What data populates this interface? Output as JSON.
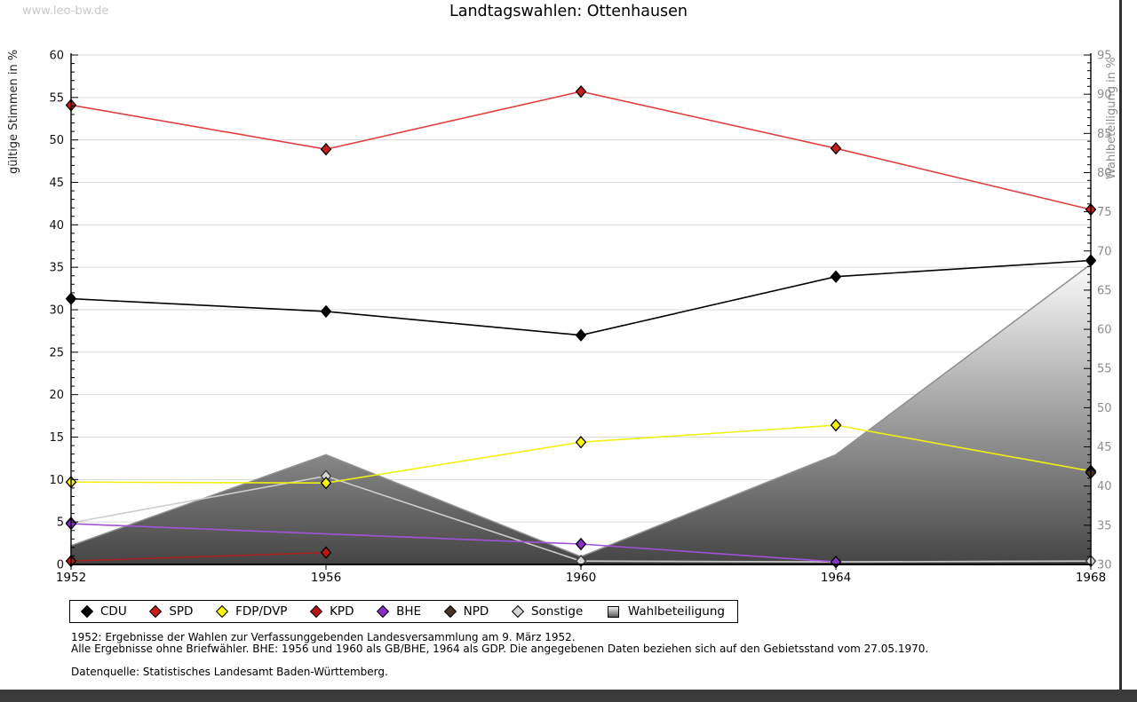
{
  "page": {
    "watermark": "www.leo-bw.de",
    "title": "Landtagswahlen: Ottenhausen",
    "footnotes": [
      "1952: Ergebnisse der Wahlen zur Verfassunggebenden Landesversammlung am 9. März 1952.",
      "Alle Ergebnisse ohne Briefwähler. BHE: 1956 und 1960 als GB/BHE, 1964 als GDP. Die angegebenen Daten beziehen sich auf den Gebietsstand vom 27.05.1970.",
      "Datenquelle: Statistisches Landesamt Baden-Württemberg."
    ]
  },
  "chart_data": {
    "type": "line",
    "title": "Landtagswahlen: Ottenhausen",
    "x": [
      1952,
      1956,
      1960,
      1964,
      1968
    ],
    "y_left": {
      "label": "gültige Stimmen in %",
      "min": 0,
      "max": 60,
      "tick_step": 5
    },
    "y_right": {
      "label": "Wahlbeteiligung in %",
      "min": 30,
      "max": 95,
      "tick_step": 5
    },
    "grid": true,
    "grid_color": "#dadada",
    "legend_position": "bottom",
    "series": [
      {
        "name": "CDU",
        "axis": "left",
        "marker": "diamond",
        "line_color": "#000000",
        "fill": "#000000",
        "values": [
          31.3,
          29.8,
          27.0,
          33.9,
          35.8
        ]
      },
      {
        "name": "SPD",
        "axis": "left",
        "marker": "diamond",
        "line_color": "#e04040",
        "fill": "#cc1b1b",
        "values": [
          54.1,
          48.9,
          55.7,
          49.0,
          41.8
        ]
      },
      {
        "name": "FDP/DVP",
        "axis": "left",
        "marker": "diamond",
        "line_color": "#f0f014",
        "fill": "#f8f800",
        "values": [
          9.7,
          9.6,
          14.4,
          16.4,
          11.0
        ]
      },
      {
        "name": "KPD",
        "axis": "left",
        "marker": "diamond",
        "line_color": "#a82020",
        "fill": "#bb1616",
        "values": [
          0.4,
          1.4,
          null,
          null,
          null
        ]
      },
      {
        "name": "BHE",
        "axis": "left",
        "marker": "diamond",
        "line_color": "#a052d8",
        "fill": "#8b2fc9",
        "values": [
          4.8,
          null,
          2.4,
          0.3,
          null
        ]
      },
      {
        "name": "NPD",
        "axis": "left",
        "marker": "diamond",
        "line_color": "#4a3322",
        "fill": "#4a3322",
        "values": [
          null,
          null,
          null,
          null,
          10.8
        ]
      },
      {
        "name": "Sonstige",
        "axis": "left",
        "marker": "diamond",
        "line_color": "#cdcdcd",
        "fill": "#d6d6d6",
        "marker_outline": "#3a3a3a",
        "values": [
          4.9,
          10.4,
          0.4,
          0.3,
          0.4
        ]
      },
      {
        "name": "Wahlbeteiligung",
        "axis": "right",
        "type": "area",
        "marker": "square",
        "border_color": "#8f8f8f",
        "fill_top": "#fbfbfb",
        "fill_bottom": "#454545",
        "values": [
          32.4,
          44.0,
          31.0,
          44.0,
          68.3
        ]
      }
    ]
  }
}
